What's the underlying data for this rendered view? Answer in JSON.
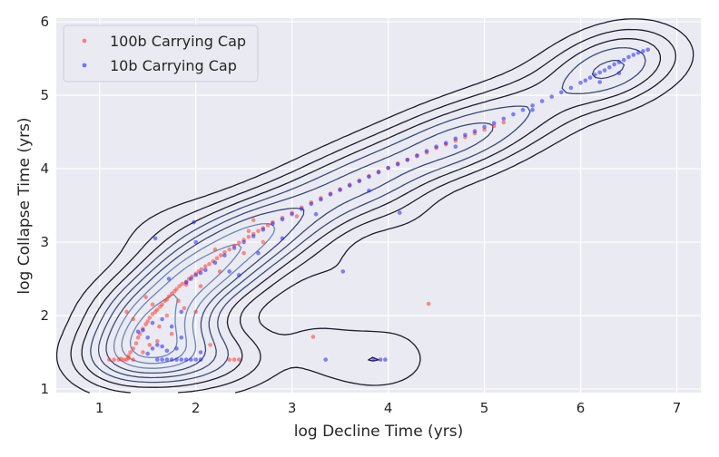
{
  "chart_data": {
    "type": "scatter",
    "xlabel": "log Decline Time (yrs)",
    "ylabel": "log Collapse Time (yrs)",
    "xlim": [
      0.55,
      7.25
    ],
    "ylim": [
      0.95,
      6.05
    ],
    "xticks": [
      "1",
      "2",
      "3",
      "4",
      "5",
      "6",
      "7"
    ],
    "yticks": [
      "1",
      "2",
      "3",
      "4",
      "5",
      "6"
    ],
    "grid": true,
    "legend_position": "top-left",
    "background": "#eaeaf2",
    "contour_color": "#1c1c2e",
    "series": [
      {
        "name": "100b Carrying Cap",
        "color": "#ff3b2e",
        "points": [
          [
            1.1,
            1.4
          ],
          [
            1.15,
            1.4
          ],
          [
            1.2,
            1.4
          ],
          [
            1.22,
            1.41
          ],
          [
            1.25,
            1.4
          ],
          [
            1.28,
            1.4
          ],
          [
            1.3,
            1.42
          ],
          [
            1.32,
            1.5
          ],
          [
            1.35,
            1.55
          ],
          [
            1.38,
            1.62
          ],
          [
            1.4,
            1.7
          ],
          [
            1.42,
            1.75
          ],
          [
            1.45,
            1.82
          ],
          [
            1.48,
            1.88
          ],
          [
            1.5,
            1.92
          ],
          [
            1.52,
            1.97
          ],
          [
            1.55,
            2.02
          ],
          [
            1.58,
            2.05
          ],
          [
            1.6,
            2.08
          ],
          [
            1.63,
            2.12
          ],
          [
            1.65,
            2.15
          ],
          [
            1.68,
            2.2
          ],
          [
            1.7,
            2.22
          ],
          [
            1.72,
            2.26
          ],
          [
            1.75,
            2.3
          ],
          [
            1.78,
            2.33
          ],
          [
            1.8,
            2.36
          ],
          [
            1.83,
            2.4
          ],
          [
            1.86,
            2.43
          ],
          [
            1.9,
            2.46
          ],
          [
            1.93,
            2.5
          ],
          [
            1.96,
            2.53
          ],
          [
            2.0,
            2.57
          ],
          [
            2.03,
            2.6
          ],
          [
            2.06,
            2.63
          ],
          [
            2.1,
            2.67
          ],
          [
            2.14,
            2.7
          ],
          [
            2.18,
            2.74
          ],
          [
            2.22,
            2.78
          ],
          [
            2.26,
            2.82
          ],
          [
            2.3,
            2.86
          ],
          [
            2.35,
            2.9
          ],
          [
            2.4,
            2.95
          ],
          [
            2.45,
            2.99
          ],
          [
            2.5,
            3.03
          ],
          [
            2.55,
            3.07
          ],
          [
            2.6,
            3.11
          ],
          [
            2.65,
            3.15
          ],
          [
            2.7,
            3.19
          ],
          [
            2.75,
            3.23
          ],
          [
            2.8,
            3.27
          ],
          [
            2.9,
            3.33
          ],
          [
            3.0,
            3.4
          ],
          [
            3.1,
            3.47
          ],
          [
            3.2,
            3.54
          ],
          [
            3.3,
            3.6
          ],
          [
            3.4,
            3.66
          ],
          [
            3.5,
            3.72
          ],
          [
            3.6,
            3.78
          ],
          [
            3.7,
            3.84
          ],
          [
            3.8,
            3.9
          ],
          [
            3.9,
            3.96
          ],
          [
            4.0,
            4.01
          ],
          [
            4.1,
            4.07
          ],
          [
            4.2,
            4.12
          ],
          [
            4.3,
            4.17
          ],
          [
            4.4,
            4.22
          ],
          [
            4.5,
            4.28
          ],
          [
            4.6,
            4.33
          ],
          [
            4.7,
            4.38
          ],
          [
            4.8,
            4.43
          ],
          [
            4.9,
            4.48
          ],
          [
            5.0,
            4.53
          ],
          [
            5.1,
            4.58
          ],
          [
            5.2,
            4.63
          ],
          [
            1.28,
            2.05
          ],
          [
            1.35,
            1.95
          ],
          [
            1.48,
            2.25
          ],
          [
            1.55,
            2.15
          ],
          [
            1.62,
            1.85
          ],
          [
            1.75,
            1.75
          ],
          [
            1.88,
            2.1
          ],
          [
            2.0,
            2.05
          ],
          [
            2.15,
            1.6
          ],
          [
            2.35,
            1.4
          ],
          [
            2.4,
            1.4
          ],
          [
            2.45,
            1.4
          ],
          [
            3.22,
            1.71
          ],
          [
            4.42,
            2.16
          ],
          [
            1.9,
            2.42
          ],
          [
            2.25,
            2.6
          ],
          [
            2.5,
            2.85
          ],
          [
            2.6,
            3.3
          ],
          [
            1.3,
            1.45
          ],
          [
            1.35,
            1.4
          ],
          [
            1.45,
            1.5
          ],
          [
            1.52,
            1.6
          ],
          [
            1.6,
            1.65
          ],
          [
            1.7,
            2.0
          ],
          [
            1.82,
            2.2
          ],
          [
            2.05,
            2.4
          ],
          [
            2.2,
            2.9
          ],
          [
            2.55,
            3.15
          ],
          [
            2.7,
            3.0
          ],
          [
            3.05,
            3.35
          ]
        ]
      },
      {
        "name": "10b Carrying Cap",
        "color": "#2424ff",
        "points": [
          [
            1.6,
            1.4
          ],
          [
            1.65,
            1.4
          ],
          [
            1.7,
            1.4
          ],
          [
            1.75,
            1.4
          ],
          [
            1.8,
            1.4
          ],
          [
            1.85,
            1.4
          ],
          [
            1.9,
            1.4
          ],
          [
            1.95,
            1.4
          ],
          [
            2.0,
            1.4
          ],
          [
            2.05,
            1.4
          ],
          [
            1.55,
            1.55
          ],
          [
            1.6,
            1.6
          ],
          [
            1.65,
            1.58
          ],
          [
            1.7,
            1.52
          ],
          [
            1.5,
            1.7
          ],
          [
            1.45,
            1.8
          ],
          [
            1.55,
            1.9
          ],
          [
            1.65,
            1.95
          ],
          [
            1.75,
            1.85
          ],
          [
            1.85,
            1.7
          ],
          [
            1.9,
            2.45
          ],
          [
            1.95,
            2.5
          ],
          [
            2.0,
            2.55
          ],
          [
            2.05,
            2.58
          ],
          [
            2.1,
            2.62
          ],
          [
            2.2,
            2.72
          ],
          [
            2.3,
            2.82
          ],
          [
            2.4,
            2.92
          ],
          [
            2.5,
            3.0
          ],
          [
            2.6,
            3.08
          ],
          [
            2.7,
            3.17
          ],
          [
            2.8,
            3.25
          ],
          [
            2.9,
            3.31
          ],
          [
            3.0,
            3.38
          ],
          [
            3.1,
            3.45
          ],
          [
            3.2,
            3.52
          ],
          [
            3.3,
            3.58
          ],
          [
            3.4,
            3.65
          ],
          [
            3.5,
            3.71
          ],
          [
            3.6,
            3.77
          ],
          [
            3.7,
            3.83
          ],
          [
            3.8,
            3.89
          ],
          [
            3.9,
            3.95
          ],
          [
            4.0,
            4.01
          ],
          [
            4.1,
            4.06
          ],
          [
            4.2,
            4.12
          ],
          [
            4.3,
            4.18
          ],
          [
            4.4,
            4.24
          ],
          [
            4.5,
            4.3
          ],
          [
            4.6,
            4.35
          ],
          [
            4.7,
            4.41
          ],
          [
            4.8,
            4.46
          ],
          [
            4.9,
            4.51
          ],
          [
            5.0,
            4.57
          ],
          [
            5.1,
            4.62
          ],
          [
            5.2,
            4.68
          ],
          [
            5.3,
            4.74
          ],
          [
            5.4,
            4.8
          ],
          [
            5.5,
            4.86
          ],
          [
            5.6,
            4.92
          ],
          [
            5.7,
            4.98
          ],
          [
            5.8,
            5.04
          ],
          [
            5.9,
            5.1
          ],
          [
            6.0,
            5.17
          ],
          [
            6.05,
            5.2
          ],
          [
            6.1,
            5.24
          ],
          [
            6.15,
            5.28
          ],
          [
            6.2,
            5.31
          ],
          [
            6.25,
            5.34
          ],
          [
            6.3,
            5.38
          ],
          [
            6.35,
            5.42
          ],
          [
            6.4,
            5.45
          ],
          [
            6.45,
            5.48
          ],
          [
            6.5,
            5.52
          ],
          [
            6.55,
            5.55
          ],
          [
            6.6,
            5.58
          ],
          [
            6.65,
            5.6
          ],
          [
            6.7,
            5.62
          ],
          [
            1.58,
            3.05
          ],
          [
            1.98,
            3.27
          ],
          [
            2.0,
            3.0
          ],
          [
            2.35,
            2.6
          ],
          [
            2.45,
            2.55
          ],
          [
            3.35,
            1.4
          ],
          [
            3.53,
            2.6
          ],
          [
            3.85,
            1.4
          ],
          [
            3.92,
            1.4
          ],
          [
            3.97,
            1.4
          ],
          [
            4.12,
            3.4
          ],
          [
            3.8,
            3.7
          ],
          [
            3.25,
            3.38
          ],
          [
            2.9,
            3.05
          ],
          [
            2.65,
            2.85
          ],
          [
            1.4,
            1.78
          ],
          [
            1.5,
            1.48
          ],
          [
            1.8,
            1.55
          ],
          [
            2.05,
            1.5
          ],
          [
            1.72,
            2.5
          ],
          [
            1.85,
            2.05
          ],
          [
            4.7,
            4.3
          ],
          [
            5.5,
            4.8
          ],
          [
            6.2,
            5.18
          ],
          [
            6.4,
            5.3
          ]
        ]
      }
    ]
  }
}
